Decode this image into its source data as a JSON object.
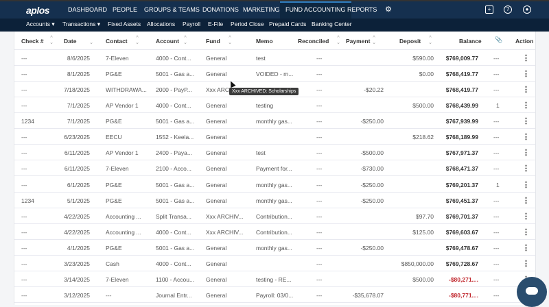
{
  "nav": {
    "logo": "aplos",
    "items": [
      "DASHBOARD",
      "PEOPLE",
      "GROUPS & TEAMS",
      "DONATIONS",
      "MARKETING",
      "FUND ACCOUNTING",
      "REPORTS"
    ],
    "active": "FUND ACCOUNTING"
  },
  "subnav": [
    "Accounts ▾",
    "Transactions ▾",
    "Fixed Assets",
    "Allocations",
    "Payroll",
    "E-File",
    "Period Close",
    "Prepaid Cards",
    "Banking Center"
  ],
  "columns": [
    "Check #",
    "Date",
    "Contact",
    "Account",
    "Fund",
    "Memo",
    "Reconciled",
    "Payment",
    "Deposit",
    "Balance",
    "Action"
  ],
  "rows": [
    [
      "---",
      "8/6/2025",
      "7-Eleven",
      "4000 - Cont...",
      "General",
      "test",
      "---",
      "",
      "$590.00",
      "$769,009.77",
      "---"
    ],
    [
      "---",
      "8/1/2025",
      "PG&E",
      "5001 - Gas a...",
      "General",
      "VOIDED - m...",
      "---",
      "",
      "$0.00",
      "$768,419.77",
      "---"
    ],
    [
      "---",
      "7/18/2025",
      "WITHDRAWA...",
      "2000 - PayP...",
      "Xxx ARCHIV...",
      "",
      "---",
      "-$20.22",
      "",
      "$768,419.77",
      "---"
    ],
    [
      "---",
      "7/1/2025",
      "AP Vendor 1",
      "4000 - Cont...",
      "General",
      "testing",
      "---",
      "",
      "$500.00",
      "$768,439.99",
      "1"
    ],
    [
      "1234",
      "7/1/2025",
      "PG&E",
      "5001 - Gas a...",
      "General",
      "monthly gas...",
      "---",
      "-$250.00",
      "",
      "$767,939.99",
      "---"
    ],
    [
      "---",
      "6/23/2025",
      "EECU",
      "1552 - Keela...",
      "General",
      "",
      "---",
      "",
      "$218.62",
      "$768,189.99",
      "---"
    ],
    [
      "---",
      "6/11/2025",
      "AP Vendor 1",
      "2400 - Paya...",
      "General",
      "test",
      "---",
      "-$500.00",
      "",
      "$767,971.37",
      "---"
    ],
    [
      "---",
      "6/11/2025",
      "7-Eleven",
      "2100 - Acco...",
      "General",
      "Payment for...",
      "---",
      "-$730.00",
      "",
      "$768,471.37",
      "---"
    ],
    [
      "---",
      "6/1/2025",
      "PG&E",
      "5001 - Gas a...",
      "General",
      "monthly gas...",
      "---",
      "-$250.00",
      "",
      "$769,201.37",
      "1"
    ],
    [
      "1234",
      "5/1/2025",
      "PG&E",
      "5001 - Gas a...",
      "General",
      "monthly gas...",
      "---",
      "-$250.00",
      "",
      "$769,451.37",
      "---"
    ],
    [
      "---",
      "4/22/2025",
      "Accounting ...",
      "Split Transa...",
      "Xxx ARCHIV...",
      "Contribution...",
      "---",
      "",
      "$97.70",
      "$769,701.37",
      "---"
    ],
    [
      "---",
      "4/22/2025",
      "Accounting ...",
      "4000 - Cont...",
      "Xxx ARCHIV...",
      "Contribution...",
      "---",
      "",
      "$125.00",
      "$769,603.67",
      "---"
    ],
    [
      "---",
      "4/1/2025",
      "PG&E",
      "5001 - Gas a...",
      "General",
      "monthly gas...",
      "---",
      "-$250.00",
      "",
      "$769,478.67",
      "---"
    ],
    [
      "---",
      "3/23/2025",
      "Cash",
      "4000 - Cont...",
      "General",
      "",
      "---",
      "",
      "$850,000.00",
      "$769,728.67",
      "---"
    ],
    [
      "---",
      "3/14/2025",
      "7-Eleven",
      "1100 - Accou...",
      "General",
      "testing - RE...",
      "---",
      "",
      "$500.00",
      "-$80,271....",
      "---"
    ],
    [
      "---",
      "3/12/2025",
      "---",
      "Journal Entr...",
      "General",
      "Payroll: 03/0...",
      "---",
      "-$35,678.07",
      "",
      "-$80,771....",
      "---"
    ]
  ],
  "tooltip": "Xxx ARCHIVED: Scholarships",
  "colors": {
    "nav": "#15304f",
    "subnav": "#0c2139",
    "negative": "#c0262c",
    "chat": "#2a4d6e"
  }
}
